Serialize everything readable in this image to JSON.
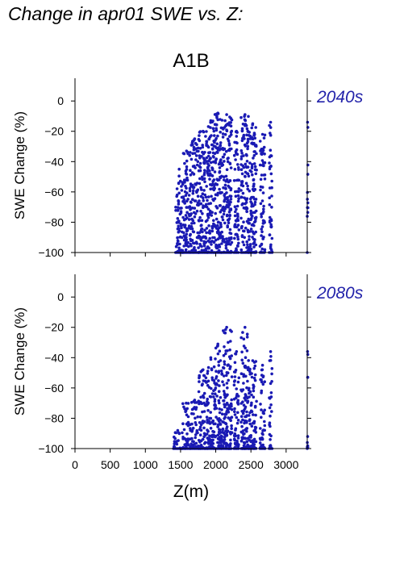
{
  "page_title": "Change in apr01 SWE vs. Z:",
  "colors": {
    "points": "#1a1ab4",
    "period_label": "#2222aa",
    "axis": "#000000"
  },
  "chart_data": [
    {
      "type": "scatter",
      "title": "A1B",
      "period_label": "2040s",
      "ylabel": "SWE Change (%)",
      "xlabel": "",
      "xlim": [
        0,
        3300
      ],
      "ylim": [
        -100,
        15
      ],
      "yticks": [
        0,
        -20,
        -40,
        -60,
        -80,
        -100
      ],
      "xticks": [
        0,
        500,
        1000,
        1500,
        2000,
        2500,
        3000
      ],
      "show_x_tick_labels": false,
      "clusters": [
        {
          "x": [
            1430,
            1530
          ],
          "y": [
            -100,
            -45
          ]
        },
        {
          "x": [
            1530,
            1640
          ],
          "y": [
            -100,
            -33
          ]
        },
        {
          "x": [
            1640,
            1760
          ],
          "y": [
            -100,
            -25
          ]
        },
        {
          "x": [
            1760,
            1880
          ],
          "y": [
            -100,
            -20
          ]
        },
        {
          "x": [
            1880,
            1980
          ],
          "y": [
            -100,
            -13
          ]
        },
        {
          "x": [
            1980,
            2080
          ],
          "y": [
            -100,
            -8
          ]
        },
        {
          "x": [
            2080,
            2230
          ],
          "y": [
            -100,
            -9
          ]
        },
        {
          "x": [
            2260,
            2330
          ],
          "y": [
            -100,
            -20
          ]
        },
        {
          "x": [
            2360,
            2470
          ],
          "y": [
            -100,
            -9
          ]
        },
        {
          "x": [
            2470,
            2580
          ],
          "y": [
            -100,
            -15
          ]
        },
        {
          "x": [
            2630,
            2700
          ],
          "y": [
            -100,
            -22
          ]
        },
        {
          "x": [
            2760,
            2800
          ],
          "y": [
            -100,
            -14
          ]
        },
        {
          "x": [
            3300,
            3310
          ],
          "y": [
            -100,
            -14
          ]
        }
      ]
    },
    {
      "type": "scatter",
      "title": "",
      "period_label": "2080s",
      "ylabel": "SWE Change (%)",
      "xlabel": "Z(m)",
      "xlim": [
        0,
        3300
      ],
      "ylim": [
        -100,
        15
      ],
      "yticks": [
        0,
        -20,
        -40,
        -60,
        -80,
        -100
      ],
      "xticks": [
        0,
        500,
        1000,
        1500,
        2000,
        2500,
        3000
      ],
      "show_x_tick_labels": true,
      "clusters": [
        {
          "x": [
            1400,
            1520
          ],
          "y": [
            -100,
            -88
          ]
        },
        {
          "x": [
            1520,
            1640
          ],
          "y": [
            -100,
            -70
          ]
        },
        {
          "x": [
            1640,
            1760
          ],
          "y": [
            -100,
            -68
          ]
        },
        {
          "x": [
            1760,
            1880
          ],
          "y": [
            -100,
            -48
          ]
        },
        {
          "x": [
            1880,
            1980
          ],
          "y": [
            -100,
            -40
          ]
        },
        {
          "x": [
            1980,
            2080
          ],
          "y": [
            -100,
            -31
          ]
        },
        {
          "x": [
            2080,
            2230
          ],
          "y": [
            -100,
            -20
          ]
        },
        {
          "x": [
            2260,
            2330
          ],
          "y": [
            -100,
            -36
          ]
        },
        {
          "x": [
            2360,
            2470
          ],
          "y": [
            -100,
            -20
          ]
        },
        {
          "x": [
            2470,
            2580
          ],
          "y": [
            -100,
            -42
          ]
        },
        {
          "x": [
            2630,
            2700
          ],
          "y": [
            -100,
            -45
          ]
        },
        {
          "x": [
            2760,
            2800
          ],
          "y": [
            -100,
            -36
          ]
        },
        {
          "x": [
            3300,
            3310
          ],
          "y": [
            -100,
            -36
          ]
        }
      ]
    }
  ]
}
